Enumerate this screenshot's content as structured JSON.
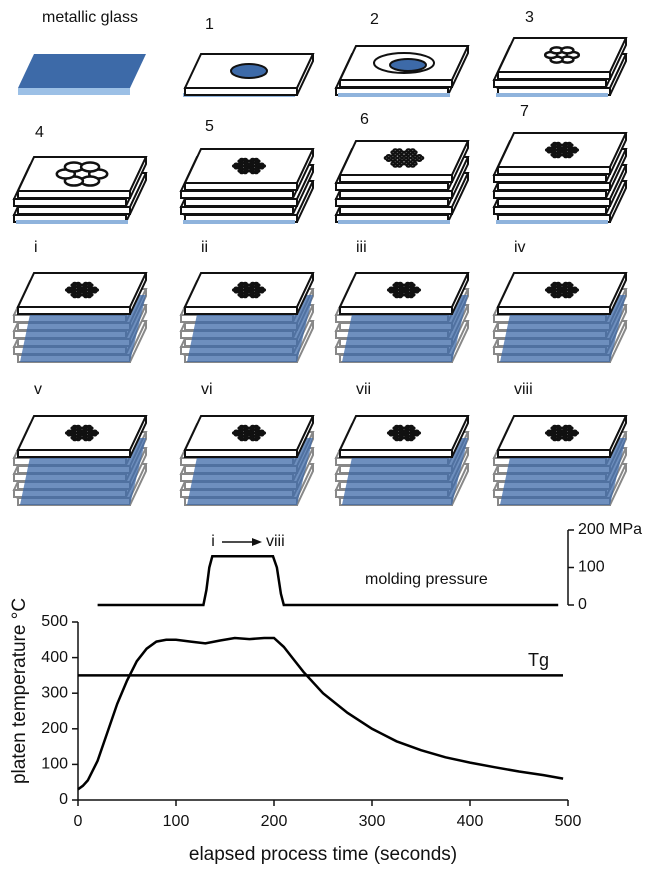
{
  "panels": {
    "labels": [
      "metallic glass",
      "1",
      "2",
      "3",
      "4",
      "5",
      "6",
      "7",
      "i",
      "ii",
      "iii",
      "iv",
      "v",
      "vi",
      "vii",
      "viii"
    ]
  },
  "chart_data": [
    {
      "type": "line",
      "annotation": "molding pressure",
      "arrow_labels": [
        "i",
        "viii"
      ],
      "xlim": [
        0,
        500
      ],
      "y2lim": [
        0,
        200
      ],
      "y2ticks": [
        0,
        100,
        {
          "value": 200,
          "label": "200 MPa"
        }
      ],
      "series": [
        {
          "color": "#000000",
          "axis": "y2",
          "x": [
            20,
            60,
            100,
            128,
            131,
            134,
            137,
            150,
            170,
            190,
            199,
            203,
            207,
            210,
            250,
            300,
            350,
            400,
            450,
            490
          ],
          "values": [
            0,
            0,
            0,
            0,
            40,
            100,
            130,
            130,
            130,
            130,
            130,
            100,
            30,
            0,
            0,
            0,
            0,
            0,
            0,
            0
          ]
        }
      ]
    },
    {
      "type": "line",
      "xlim": [
        0,
        500
      ],
      "ylim": [
        0,
        500
      ],
      "xticks": [
        0,
        100,
        200,
        300,
        400,
        500
      ],
      "yticks": [
        0,
        100,
        200,
        300,
        400,
        500
      ],
      "xlabel": "elapsed process time (seconds)",
      "ylabel": "platen temperature °C",
      "hlines": [
        {
          "value": 350,
          "label": "Tg",
          "color": "#000000"
        }
      ],
      "series": [
        {
          "color": "#000000",
          "x": [
            0,
            5,
            10,
            20,
            30,
            40,
            50,
            60,
            70,
            80,
            90,
            100,
            115,
            130,
            145,
            160,
            175,
            190,
            200,
            210,
            220,
            230,
            250,
            275,
            300,
            325,
            350,
            375,
            400,
            425,
            450,
            475,
            495
          ],
          "values": [
            30,
            40,
            55,
            110,
            190,
            270,
            335,
            390,
            425,
            445,
            450,
            450,
            445,
            440,
            448,
            455,
            452,
            455,
            455,
            430,
            395,
            360,
            300,
            245,
            200,
            165,
            140,
            120,
            105,
            92,
            80,
            70,
            60
          ]
        }
      ]
    }
  ]
}
